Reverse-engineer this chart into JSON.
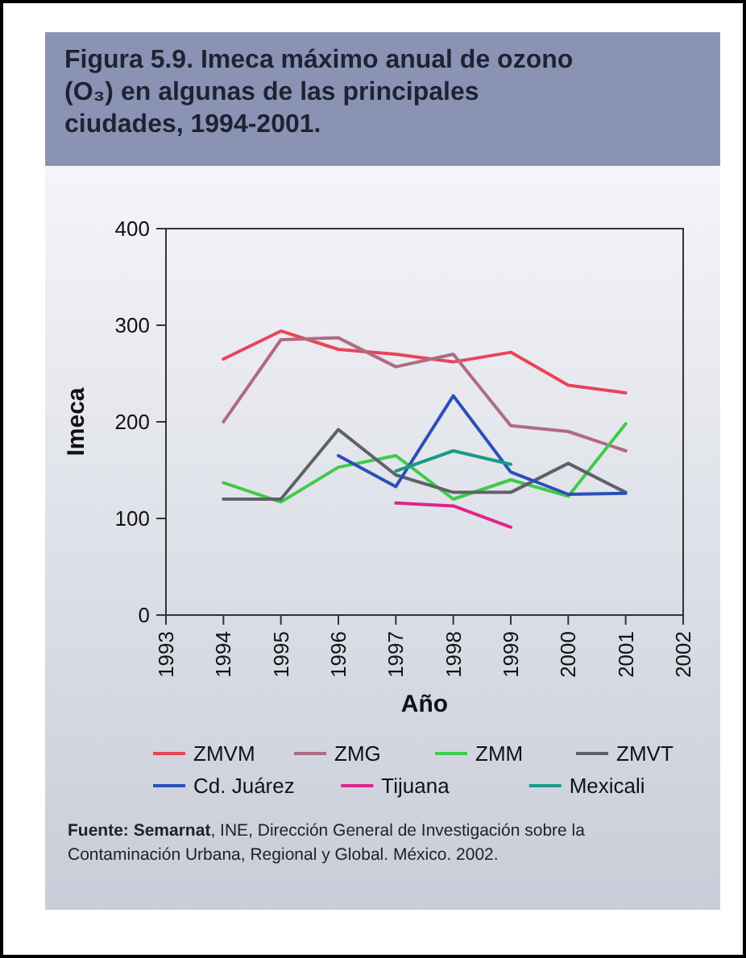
{
  "chart_data": {
    "type": "line",
    "title": "Figura 5.9. Imeca máximo anual de ozono (O₃) en algunas de las principales ciudades, 1994-2001.",
    "xlabel": "Año",
    "ylabel": "Imeca",
    "x": [
      1994,
      1995,
      1996,
      1997,
      1998,
      1999,
      2000,
      2001
    ],
    "xlim": [
      1993,
      2002
    ],
    "xticks": [
      1993,
      1994,
      1995,
      1996,
      1997,
      1998,
      1999,
      2000,
      2001,
      2002
    ],
    "ylim": [
      0,
      400
    ],
    "yticks": [
      0,
      100,
      200,
      300,
      400
    ],
    "grid": false,
    "legend": "bottom",
    "marker": "none",
    "line_style": "solid",
    "annotations": [
      "Fuente: Semarnat, INE, Dirección General de Investigación sobre la Contaminación Urbana, Regional y Global. México. 2002."
    ],
    "series": [
      {
        "name": "ZMVM",
        "color": "#e8445a",
        "values": [
          265,
          294,
          275,
          270,
          262,
          272,
          238,
          230
        ]
      },
      {
        "name": "ZMG",
        "color": "#b06a84",
        "values": [
          200,
          285,
          287,
          257,
          270,
          196,
          190,
          170
        ]
      },
      {
        "name": "ZMM",
        "color": "#3ecb4a",
        "values": [
          137,
          117,
          153,
          165,
          120,
          140,
          123,
          198
        ]
      },
      {
        "name": "ZMVT",
        "color": "#606068",
        "values": [
          120,
          120,
          192,
          145,
          127,
          127,
          157,
          127
        ]
      },
      {
        "name": "Cd. Juárez",
        "color": "#2b4fb8",
        "values": [
          null,
          null,
          165,
          133,
          227,
          148,
          125,
          126
        ]
      },
      {
        "name": "Tijuana",
        "color": "#e0248a",
        "values": [
          null,
          null,
          null,
          116,
          113,
          91,
          null,
          null
        ]
      },
      {
        "name": "Mexicali",
        "color": "#1a9a86",
        "values": [
          null,
          null,
          null,
          149,
          170,
          156,
          null,
          null
        ]
      }
    ]
  }
}
